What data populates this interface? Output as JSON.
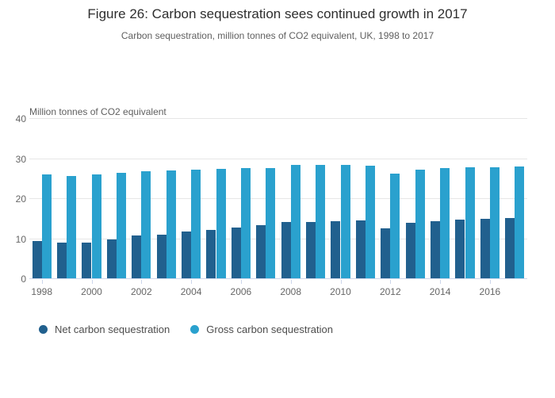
{
  "chart_data": {
    "type": "bar",
    "title": "Figure 26: Carbon sequestration sees continued growth in 2017",
    "subtitle": "Carbon sequestration, million tonnes of CO2 equivalent, UK, 1998 to 2017",
    "y_axis_title": "Million tonnes of CO2 equivalent",
    "xlabel": "",
    "ylabel": "Million tonnes of CO2 equivalent",
    "categories": [
      "1998",
      "1999",
      "2000",
      "2001",
      "2002",
      "2003",
      "2004",
      "2005",
      "2006",
      "2007",
      "2008",
      "2009",
      "2010",
      "2011",
      "2012",
      "2013",
      "2014",
      "2015",
      "2016",
      "2017"
    ],
    "series": [
      {
        "name": "Net carbon sequestration",
        "color": "#21608e",
        "values": [
          9.4,
          8.9,
          8.9,
          9.7,
          10.6,
          10.8,
          11.7,
          12.1,
          12.7,
          13.3,
          14.0,
          14.0,
          14.2,
          14.5,
          12.5,
          13.9,
          14.2,
          14.6,
          14.9,
          15.1
        ]
      },
      {
        "name": "Gross carbon sequestration",
        "color": "#2aa1ce",
        "values": [
          25.9,
          25.5,
          25.9,
          26.3,
          26.7,
          27.0,
          27.1,
          27.4,
          27.6,
          27.6,
          28.4,
          28.4,
          28.4,
          28.2,
          26.1,
          27.2,
          27.6,
          27.7,
          27.8,
          27.9
        ]
      }
    ],
    "ylim": [
      0,
      40
    ],
    "yticks": [
      0,
      10,
      20,
      30,
      40
    ],
    "x_label_step": 2,
    "grid": true,
    "legend_position": "bottom-left",
    "colors": {
      "gridline": "#e6e6e6",
      "axis_line": "#ccd6eb",
      "tick_label": "#666666",
      "legend_text": "#4d4d4d"
    }
  }
}
